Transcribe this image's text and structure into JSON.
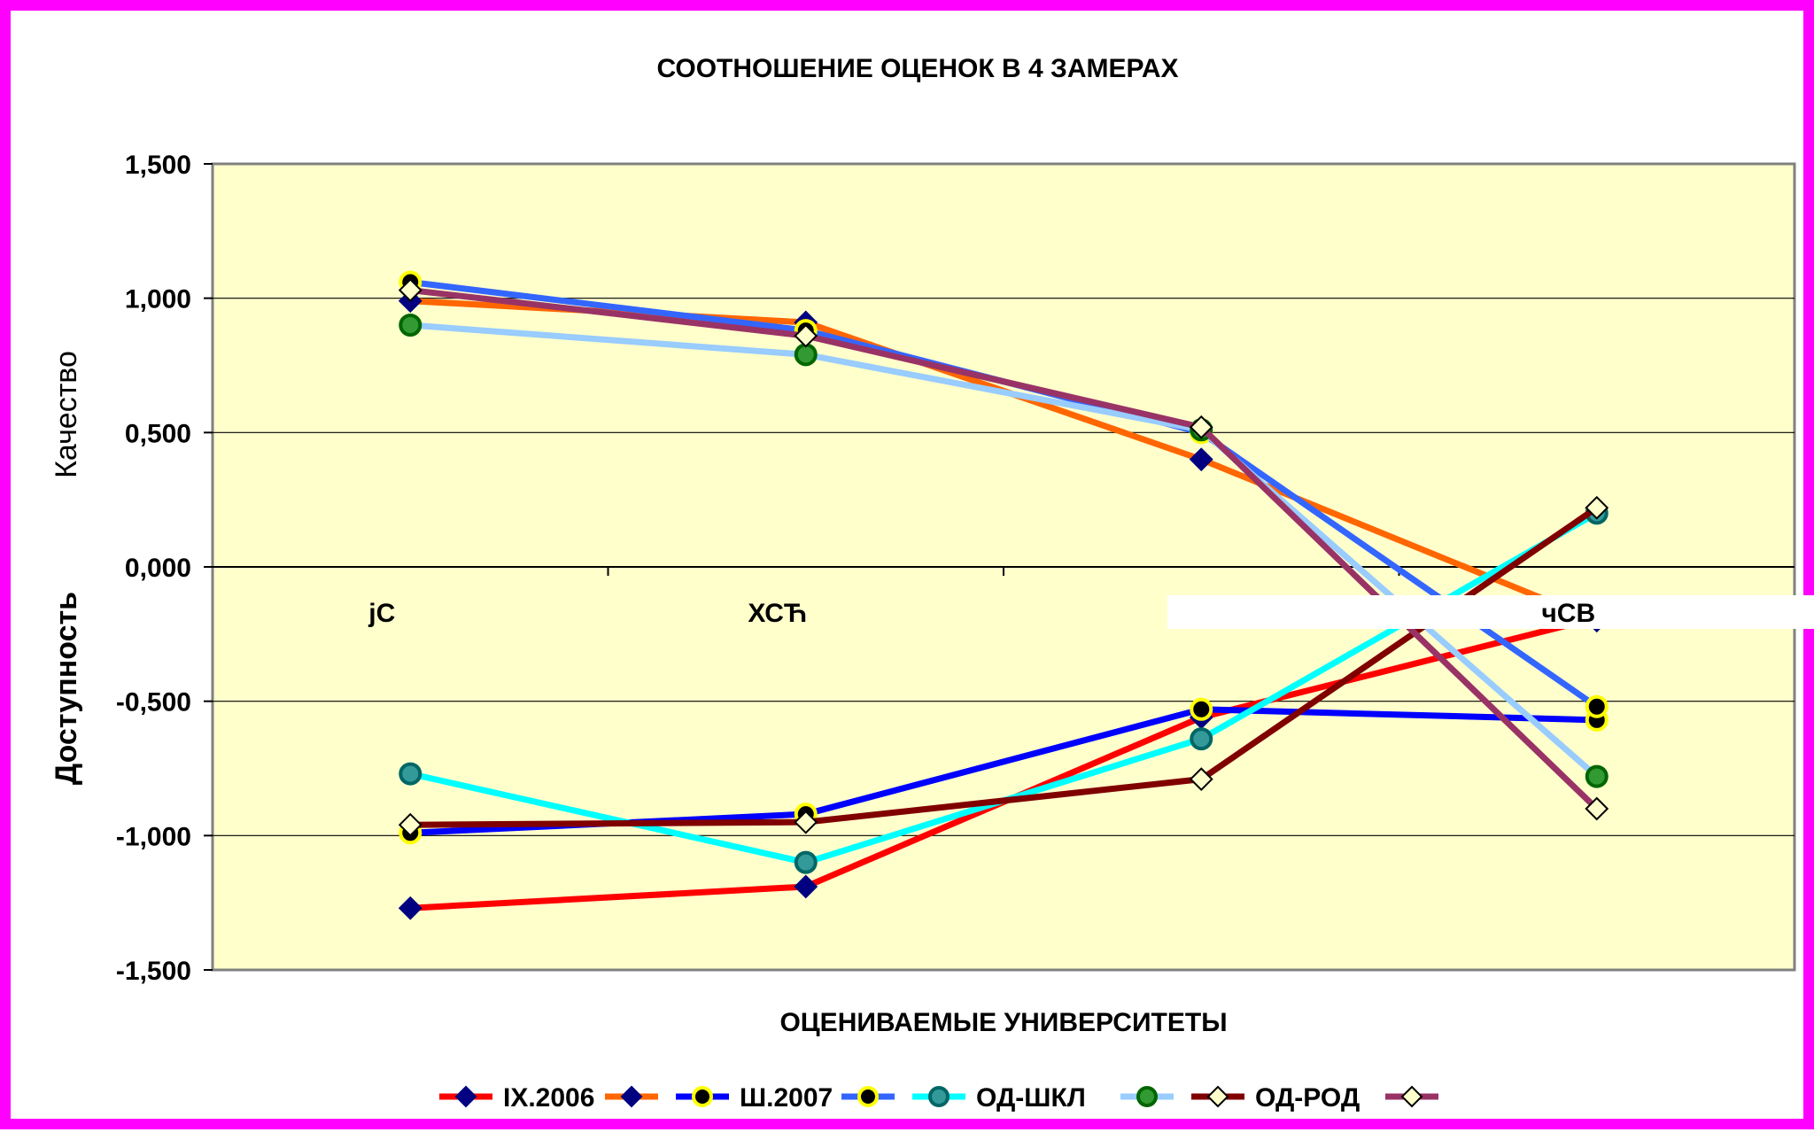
{
  "colors": {
    "frame": "#ff00ff",
    "plot_bg": "#ffffcc"
  },
  "chart_data": {
    "type": "line",
    "title": "СООТНОШЕНИЕ ОЦЕНОК В 4 ЗАМЕРАХ",
    "xlabel": "ОЦЕНИВАЕМЫЕ УНИВЕРСИТЕТЫ",
    "ylabel_top": "Качество",
    "ylabel_bottom": "Доступность",
    "categories": [
      "jС",
      "ХСЋ",
      "",
      "чСВ"
    ],
    "ylim": [
      -1.5,
      1.5
    ],
    "yticks": [
      1.5,
      1.0,
      0.5,
      0.0,
      -0.5,
      -1.0,
      -1.5
    ],
    "ytick_labels": [
      "1,500",
      "1,000",
      "0,500",
      "0,000",
      "-0,500",
      "-1,000",
      "-1,500"
    ],
    "grid": true,
    "legend_position": "bottom",
    "series": [
      {
        "name": "IX.2006",
        "line_color": "#ff0000",
        "marker": "diamond",
        "marker_fill": "#000080",
        "marker_stroke": "#000080",
        "values": [
          -1.27,
          -1.19,
          -0.56,
          -0.19
        ]
      },
      {
        "name": "",
        "line_color": "#ff6600",
        "marker": "diamond",
        "marker_fill": "#000080",
        "marker_stroke": "#000080",
        "values": [
          0.99,
          0.91,
          0.4,
          -0.2
        ]
      },
      {
        "name": "Ш.2007",
        "line_color": "#0000ff",
        "marker": "circle",
        "marker_fill": "#000000",
        "marker_stroke": "#ffff00",
        "values": [
          -0.99,
          -0.92,
          -0.53,
          -0.57
        ]
      },
      {
        "name": "",
        "line_color": "#3366ff",
        "marker": "circle",
        "marker_fill": "#000000",
        "marker_stroke": "#ffff00",
        "values": [
          1.06,
          0.88,
          0.5,
          -0.52
        ]
      },
      {
        "name": "ОД-ШКЛ",
        "line_color": "#00ffff",
        "marker": "circle",
        "marker_fill": "#339999",
        "marker_stroke": "#006666",
        "values": [
          -0.77,
          -1.1,
          -0.64,
          0.2
        ]
      },
      {
        "name": "",
        "line_color": "#99ccff",
        "marker": "circle",
        "marker_fill": "#339933",
        "marker_stroke": "#006600",
        "values": [
          0.9,
          0.79,
          0.51,
          -0.78
        ]
      },
      {
        "name": "ОД-РОД",
        "line_color": "#800000",
        "marker": "diamond",
        "marker_fill": "#ffffcc",
        "marker_stroke": "#000000",
        "values": [
          -0.96,
          -0.95,
          -0.79,
          0.22
        ]
      },
      {
        "name": "",
        "line_color": "#993366",
        "marker": "diamond",
        "marker_fill": "#ffffcc",
        "marker_stroke": "#000000",
        "values": [
          1.03,
          0.86,
          0.52,
          -0.9
        ]
      }
    ]
  }
}
